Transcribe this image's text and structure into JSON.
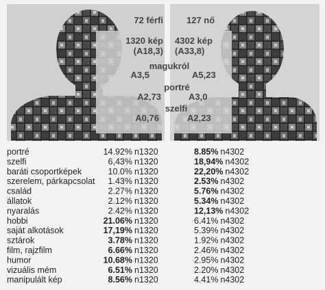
{
  "header": {
    "men": "72 férfi",
    "women": "127 nő",
    "men_images": "1320 kép",
    "men_avg": "(A18,3)",
    "women_images": "4302 kép",
    "women_avg": "(A33,8)",
    "about_self": "magukról",
    "about_self_men": "A3,5",
    "about_self_women": "A5,23",
    "portrait": "portré",
    "portrait_men": "A2,73",
    "portrait_women": "A3,0",
    "selfie": "szelfi",
    "selfie_men": "A0,76",
    "selfie_women": "A2,23"
  },
  "table": {
    "rows": [
      {
        "label": "portré",
        "men": "14.92%",
        "men_n": "n1320",
        "women": "8.85%",
        "women_n": "n4302",
        "bold": "women"
      },
      {
        "label": "szelfi",
        "men": "6,43%",
        "men_n": "n1320",
        "women": "18,94%",
        "women_n": "n4302",
        "bold": "women"
      },
      {
        "label": "baráti csoportképek",
        "men": "10.0%",
        "men_n": "n1320",
        "women": "22,20%",
        "women_n": "n4302",
        "bold": "women"
      },
      {
        "label": "szerelem, párkapcsolat",
        "men": "1.43%",
        "men_n": "n1320",
        "women": "2.53%",
        "women_n": "n4302",
        "bold": "women"
      },
      {
        "label": "család",
        "men": "2.27%",
        "men_n": "n1320",
        "women": "5.76%",
        "women_n": "n4302",
        "bold": "women"
      },
      {
        "label": "állatok",
        "men": "2.12%",
        "men_n": "n1320",
        "women": "5.34%",
        "women_n": "n4302",
        "bold": "women"
      },
      {
        "label": "nyaralás",
        "men": "2.42%",
        "men_n": "n1320",
        "women": "12,13%",
        "women_n": "n4302",
        "bold": "women"
      },
      {
        "label": "hobbi",
        "men": "21.06%",
        "men_n": "n1320",
        "women": "6.41%",
        "women_n": "n4302",
        "bold": "men"
      },
      {
        "label": "saját alkotások",
        "men": "17,19%",
        "men_n": "n1320",
        "women": "5.39%",
        "women_n": "n4302",
        "bold": "men"
      },
      {
        "label": "sztárok",
        "men": "3.78%",
        "men_n": "n1320",
        "women": "1.92%",
        "women_n": "n4302",
        "bold": "men"
      },
      {
        "label": "film, rajzfilm",
        "men": "6.66%",
        "men_n": "n1320",
        "women": "2.46%",
        "women_n": "n4302",
        "bold": "men"
      },
      {
        "label": "humor",
        "men": "10.68%",
        "men_n": "n1320",
        "women": "2.95%",
        "women_n": "n4302",
        "bold": "men"
      },
      {
        "label": "vizuális mém",
        "men": "6.51%",
        "men_n": "n1320",
        "women": "2.20%",
        "women_n": "n4302",
        "bold": "men"
      },
      {
        "label": "manipulált kép",
        "men": "8.56%",
        "men_n": "n1320",
        "women": "4.41%",
        "women_n": "n4302",
        "bold": "men"
      }
    ]
  }
}
